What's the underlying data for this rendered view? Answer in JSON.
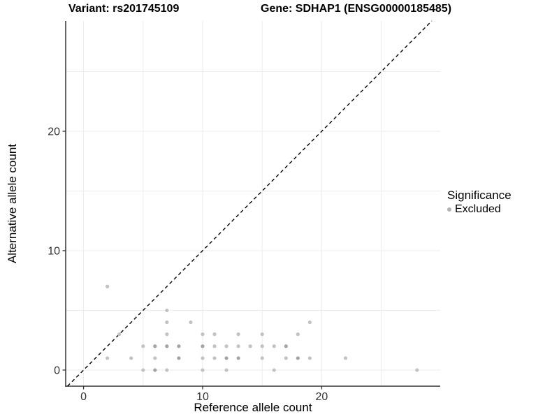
{
  "chart_data": {
    "type": "scatter",
    "title_left": "Variant: rs201745109",
    "title_right": "Gene: SDHAP1 (ENSG00000185485)",
    "xlabel": "Reference allele count",
    "ylabel": "Alternative allele count",
    "xlim": [
      -1.5,
      29.95
    ],
    "ylim": [
      -1.35,
      29.24
    ],
    "x_ticks": [
      0,
      10,
      20
    ],
    "y_ticks": [
      0,
      10,
      20
    ],
    "grid": true,
    "grid_interval": 5,
    "identity_line": {
      "style": "dashed",
      "slope": 1,
      "intercept": 0,
      "color": "#000000"
    },
    "legend": {
      "title": "Significance",
      "position": "right",
      "items": [
        {
          "label": "Excluded",
          "color": "#b3b3b3"
        }
      ]
    },
    "series": [
      {
        "name": "Excluded",
        "color": "#c3c3c3",
        "overlap_color": "#a4a4a4",
        "point_radius": 2.6,
        "points": [
          [
            2,
            7,
            1
          ],
          [
            7,
            5,
            1
          ],
          [
            7,
            4,
            1
          ],
          [
            9,
            4,
            1
          ],
          [
            19,
            4,
            1
          ],
          [
            3,
            3,
            1
          ],
          [
            7,
            3,
            1
          ],
          [
            10,
            3,
            1
          ],
          [
            11,
            3,
            1
          ],
          [
            13,
            3,
            1
          ],
          [
            15,
            3,
            1
          ],
          [
            18,
            3,
            1
          ],
          [
            5,
            2,
            1
          ],
          [
            6,
            2,
            2
          ],
          [
            7,
            2,
            2
          ],
          [
            8,
            2,
            2
          ],
          [
            10,
            2,
            2
          ],
          [
            11,
            2,
            1
          ],
          [
            12,
            2,
            1
          ],
          [
            13,
            2,
            1
          ],
          [
            14,
            2,
            1
          ],
          [
            15,
            2,
            1
          ],
          [
            16,
            2,
            1
          ],
          [
            17,
            2,
            2
          ],
          [
            2,
            1,
            1
          ],
          [
            4,
            1,
            1
          ],
          [
            6,
            1,
            1
          ],
          [
            8,
            1,
            2
          ],
          [
            10,
            1,
            1
          ],
          [
            11,
            1,
            1
          ],
          [
            12,
            1,
            2
          ],
          [
            13,
            1,
            2
          ],
          [
            15,
            1,
            1
          ],
          [
            17,
            1,
            1
          ],
          [
            18,
            1,
            2
          ],
          [
            19,
            1,
            1
          ],
          [
            22,
            1,
            1
          ],
          [
            5,
            0,
            1
          ],
          [
            6,
            0,
            2
          ],
          [
            7,
            0,
            1
          ],
          [
            10,
            0,
            1
          ],
          [
            12,
            0,
            1
          ],
          [
            16,
            0,
            1
          ],
          [
            28,
            0,
            1
          ]
        ]
      }
    ]
  },
  "colors": {
    "background": "#ffffff",
    "grid": "#ececec",
    "axis_line": "#333333",
    "tick_label": "#333333",
    "identity_line": "#000000"
  }
}
